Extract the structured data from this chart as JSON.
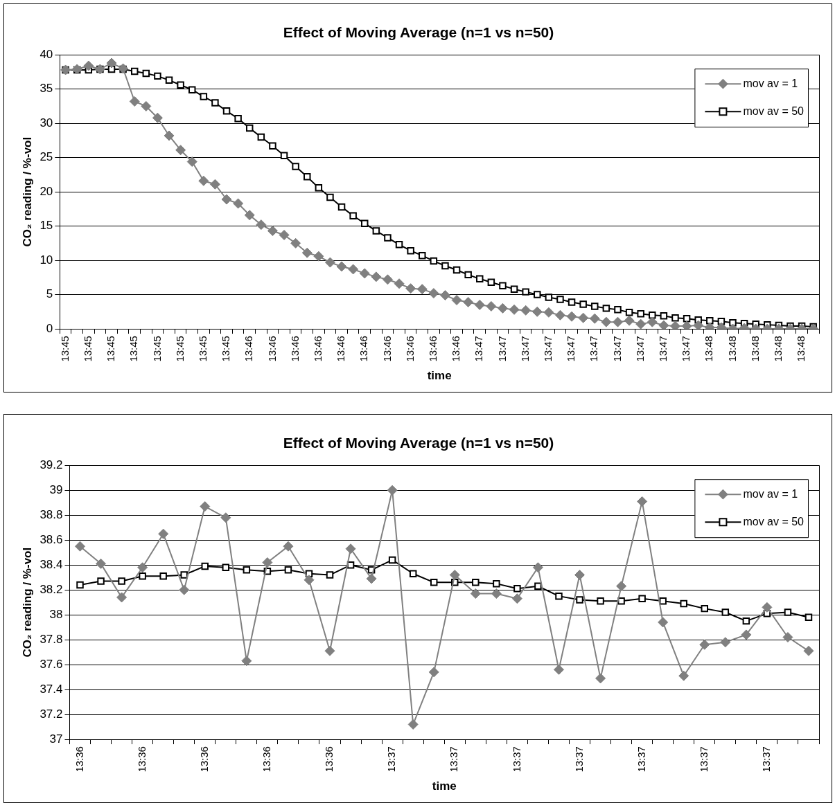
{
  "chart_data": [
    {
      "type": "line",
      "title": "Effect of Moving Average (n=1 vs n=50)",
      "xlabel": "time",
      "ylabel": "CO₂ reading / %-vol",
      "categories": [
        "13:45",
        null,
        "13:45",
        null,
        "13:45",
        null,
        "13:45",
        null,
        "13:45",
        null,
        "13:45",
        null,
        "13:45",
        null,
        "13:45",
        null,
        "13:46",
        null,
        "13:46",
        null,
        "13:46",
        null,
        "13:46",
        null,
        "13:46",
        null,
        "13:46",
        null,
        "13:46",
        null,
        "13:46",
        null,
        "13:46",
        null,
        "13:46",
        null,
        "13:47",
        null,
        "13:47",
        null,
        "13:47",
        null,
        "13:47",
        null,
        "13:47",
        null,
        "13:47",
        null,
        "13:47",
        null,
        "13:47",
        null,
        "13:47",
        null,
        "13:47",
        null,
        "13:48",
        null,
        "13:48",
        null,
        "13:48",
        null,
        "13:48",
        null,
        "13:48",
        null
      ],
      "series": [
        {
          "name": "mov av = 1",
          "color": "#808080",
          "marker": "diamond",
          "values": [
            37.8,
            37.9,
            38.4,
            37.9,
            38.8,
            38.0,
            33.2,
            32.5,
            30.8,
            28.2,
            26.1,
            24.4,
            21.6,
            21.1,
            18.9,
            18.3,
            16.6,
            15.2,
            14.3,
            13.7,
            12.5,
            11.1,
            10.6,
            9.7,
            9.1,
            8.7,
            8.1,
            7.6,
            7.2,
            6.6,
            5.9,
            5.8,
            5.2,
            4.9,
            4.2,
            3.9,
            3.5,
            3.3,
            3.0,
            2.8,
            2.7,
            2.5,
            2.4,
            2.0,
            1.8,
            1.6,
            1.5,
            1.0,
            1.0,
            1.2,
            0.7,
            1.0,
            0.5,
            0.4,
            0.4,
            0.5,
            0.2,
            0.2,
            0.0,
            0.1,
            0.0,
            0.0,
            0.0,
            0.0,
            0.0,
            0.0
          ]
        },
        {
          "name": "mov av = 50",
          "color": "#000000",
          "marker": "square",
          "values": [
            37.8,
            37.8,
            37.8,
            37.9,
            37.9,
            37.9,
            37.6,
            37.3,
            36.9,
            36.3,
            35.6,
            34.9,
            33.9,
            33.0,
            31.8,
            30.7,
            29.3,
            28.0,
            26.7,
            25.3,
            23.7,
            22.2,
            20.6,
            19.2,
            17.8,
            16.5,
            15.4,
            14.3,
            13.3,
            12.3,
            11.4,
            10.7,
            9.9,
            9.2,
            8.6,
            7.9,
            7.3,
            6.8,
            6.3,
            5.8,
            5.4,
            5.0,
            4.6,
            4.3,
            3.9,
            3.6,
            3.3,
            3.0,
            2.8,
            2.4,
            2.2,
            2.0,
            1.9,
            1.6,
            1.5,
            1.3,
            1.2,
            1.1,
            0.9,
            0.8,
            0.7,
            0.6,
            0.5,
            0.4,
            0.4,
            0.3
          ]
        }
      ],
      "ylim": [
        0,
        40
      ],
      "yticks": [
        0,
        5,
        10,
        15,
        20,
        25,
        30,
        35,
        40
      ],
      "grid": "y",
      "legend": "top right",
      "line_style": "solid"
    },
    {
      "type": "line",
      "title": "Effect of Moving Average (n=1 vs n=50)",
      "xlabel": "time",
      "ylabel": "CO₂ reading / %-vol",
      "categories": [
        "13:36",
        null,
        null,
        "13:36",
        null,
        null,
        "13:36",
        null,
        null,
        "13:36",
        null,
        null,
        "13:36",
        null,
        null,
        "13:37",
        null,
        null,
        "13:37",
        null,
        null,
        "13:37",
        null,
        null,
        "13:37",
        null,
        null,
        "13:37",
        null,
        null,
        "13:37",
        null,
        null,
        "13:37",
        null,
        null
      ],
      "series": [
        {
          "name": "mov av = 1",
          "color": "#808080",
          "marker": "diamond",
          "values": [
            38.55,
            38.41,
            38.14,
            38.38,
            38.65,
            38.2,
            38.87,
            38.78,
            37.63,
            38.42,
            38.55,
            38.28,
            37.71,
            38.53,
            38.29,
            39.0,
            37.12,
            37.54,
            38.32,
            38.17,
            38.17,
            38.13,
            38.38,
            37.56,
            38.32,
            37.49,
            38.23,
            38.91,
            37.94,
            37.51,
            37.76,
            37.78,
            37.84,
            38.06,
            37.82,
            37.71
          ]
        },
        {
          "name": "mov av = 50",
          "color": "#000000",
          "marker": "square",
          "values": [
            38.24,
            38.27,
            38.27,
            38.31,
            38.31,
            38.32,
            38.39,
            38.38,
            38.36,
            38.35,
            38.36,
            38.33,
            38.32,
            38.4,
            38.36,
            38.44,
            38.33,
            38.26,
            38.26,
            38.26,
            38.25,
            38.21,
            38.23,
            38.15,
            38.12,
            38.11,
            38.11,
            38.13,
            38.11,
            38.09,
            38.05,
            38.02,
            37.95,
            38.01,
            38.02,
            37.98
          ]
        }
      ],
      "ylim": [
        37,
        39.2
      ],
      "yticks": [
        37,
        37.2,
        37.4,
        37.6,
        37.8,
        38,
        38.2,
        38.4,
        38.6,
        38.8,
        39,
        39.2
      ],
      "grid": "y",
      "legend": "top right",
      "line_style": "solid"
    }
  ]
}
